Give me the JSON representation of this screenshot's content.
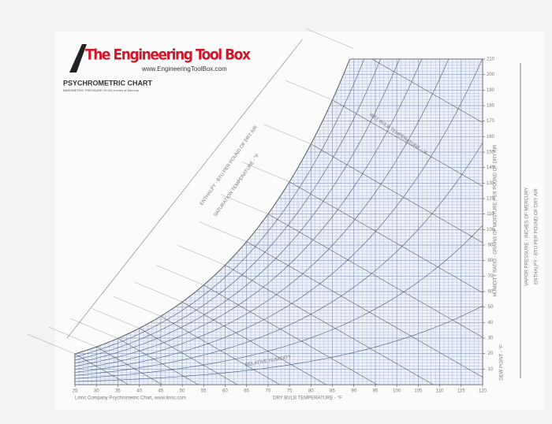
{
  "header": {
    "brand": "The Engineering Tool Box",
    "url": "www.EngineeringToolBox.com",
    "title": "PSYCHROMETRIC CHART",
    "subtitle": "BAROMETRIC PRESSURE 29.921 Inches of Mercury"
  },
  "chart_data": {
    "type": "psychrometric",
    "x_label": "DRY BULB TEMPERATURE - °F",
    "y_label": "HUMIDITY RATIO - GRAINS OF MOISTURE PER POUND OF DRY AIR",
    "xlim": [
      25,
      120
    ],
    "xticks": [
      25,
      30,
      35,
      40,
      45,
      50,
      55,
      60,
      65,
      70,
      75,
      80,
      85,
      90,
      95,
      100,
      105,
      110,
      115,
      120
    ],
    "ylim": [
      0,
      210
    ],
    "yticks": [
      10,
      20,
      30,
      40,
      50,
      60,
      70,
      80,
      90,
      100,
      110,
      120,
      130,
      140,
      150,
      160,
      170,
      180,
      190,
      200,
      210
    ],
    "annotations": [
      "SATURATION TEMPERATURE - °F",
      "WET BULB TEMPERATURE - °F",
      "ENTHALPY - BTU PER POUND OF DRY AIR",
      "RELATIVE HUMIDITY",
      "DEW POINT - °F",
      "VAPOR PRESSURE - INCHES OF MERCURY",
      "ENTHALPY - BTU PER POUND OF DRY AIR"
    ],
    "footer": "Linric Company Psychrometric Chart, www.linric.com"
  }
}
